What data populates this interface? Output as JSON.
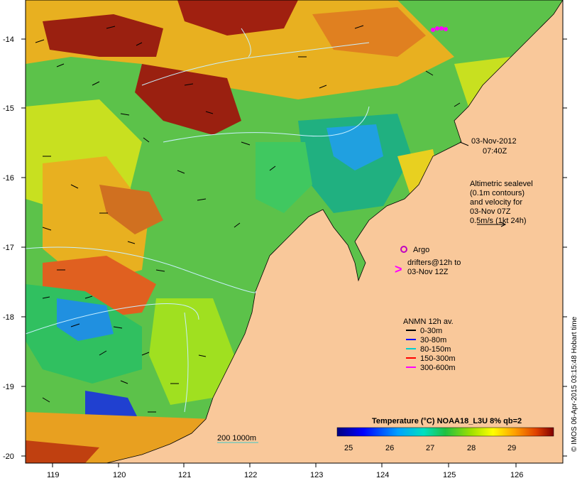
{
  "map": {
    "date": "03-Nov-2012",
    "time": "07:40Z",
    "altimetry_note": [
      "Altimetric sealevel",
      "(0.1m contours)",
      "and velocity for",
      "03-Nov 07Z",
      "0.5m/s (1kt 24h)"
    ],
    "argo_label": "Argo",
    "drifters_label": [
      "drifters@12h to",
      "03-Nov 12Z"
    ],
    "anmn_title": "ANMN 12h av.",
    "anmn_legend": [
      {
        "label": "0-30m",
        "color": "#000000"
      },
      {
        "label": "30-80m",
        "color": "#0000ff"
      },
      {
        "label": "80-150m",
        "color": "#00d0d0"
      },
      {
        "label": "150-300m",
        "color": "#ff0000"
      },
      {
        "label": "300-600m",
        "color": "#ff00ff"
      }
    ],
    "colorbar_title": "Temperature (°C) NOAA18_L3U 8% qb=2",
    "colorbar_ticks": [
      "25",
      "26",
      "27",
      "28",
      "29"
    ],
    "scale_label": "200  1000m",
    "credit": "© IMOS 06-Apr-2015 03:15:48 Hobart time",
    "lat_ticks": [
      "-14",
      "-15",
      "-16",
      "-17",
      "-18",
      "-19",
      "-20"
    ],
    "lon_ticks": [
      "119",
      "120",
      "121",
      "122",
      "123",
      "124",
      "125",
      "126"
    ],
    "colors": {
      "land": "#f9c89a",
      "argo": "#c000c0",
      "drifter": "#ff00ff"
    }
  }
}
